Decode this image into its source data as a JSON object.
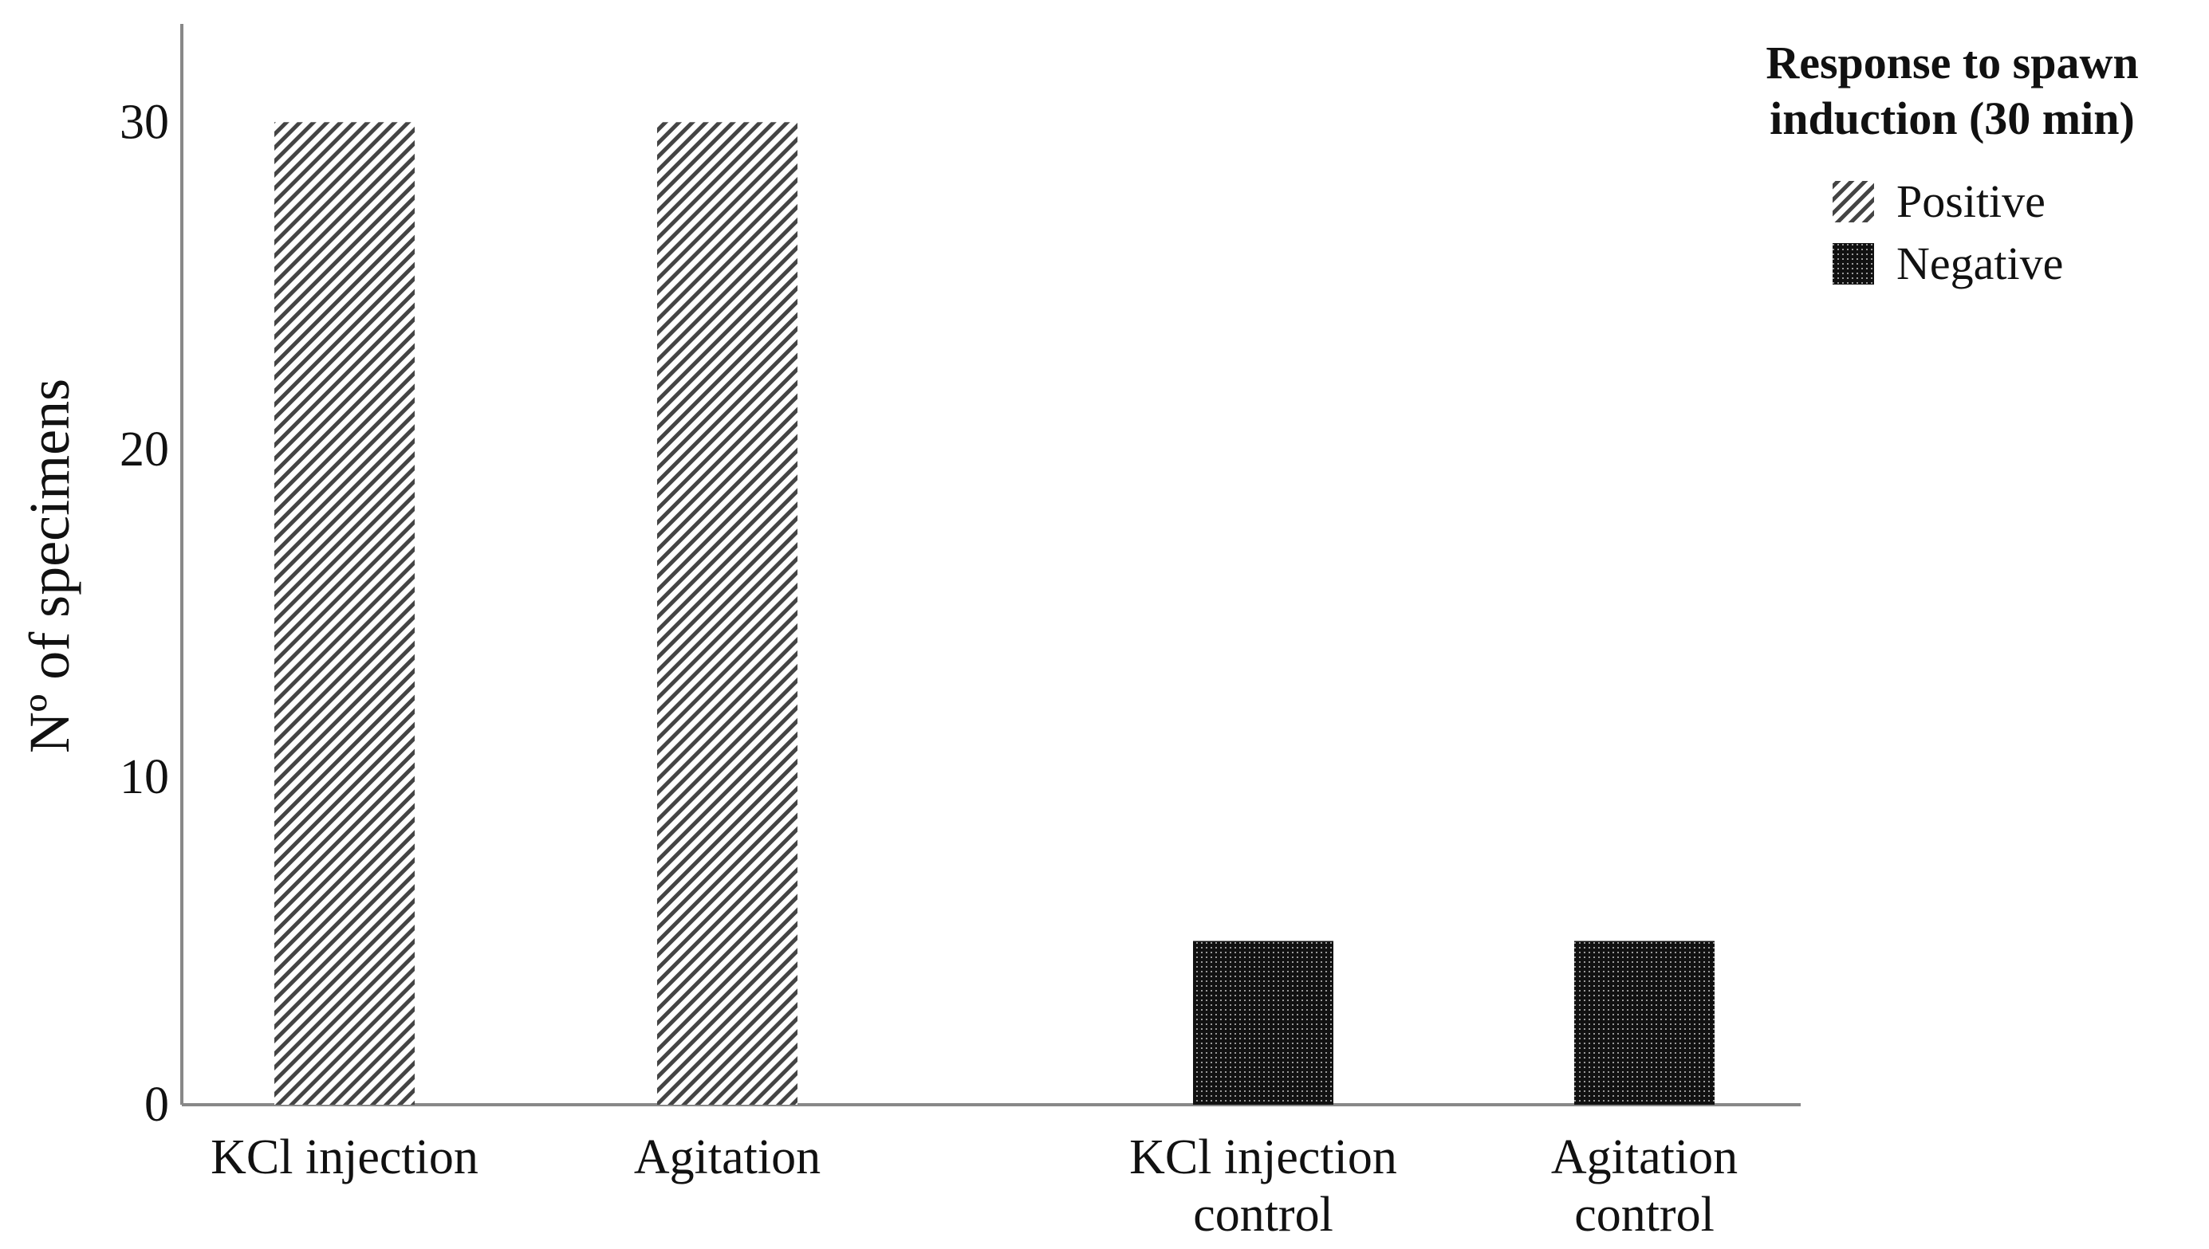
{
  "chart_data": {
    "type": "bar",
    "title": "",
    "xlabel": "",
    "ylabel": "Nº of specimens",
    "ylim": [
      0,
      33
    ],
    "yticks": [
      0,
      10,
      20,
      30
    ],
    "grid": false,
    "categories": [
      [
        "KCl injection"
      ],
      [
        "Agitation"
      ],
      [
        "KCl injection",
        "control"
      ],
      [
        "Agitation",
        "control"
      ]
    ],
    "series": [
      {
        "name": "Positive",
        "pattern": "diagonal-hatch",
        "color": "#444444",
        "values": [
          30,
          30,
          0,
          0
        ]
      },
      {
        "name": "Negative",
        "pattern": "dense-checker",
        "color": "#111111",
        "values": [
          0,
          0,
          5,
          5
        ]
      }
    ],
    "legend": {
      "title_lines": [
        "Response to spawn",
        "induction (30 min)"
      ],
      "placement": "top-right"
    }
  }
}
